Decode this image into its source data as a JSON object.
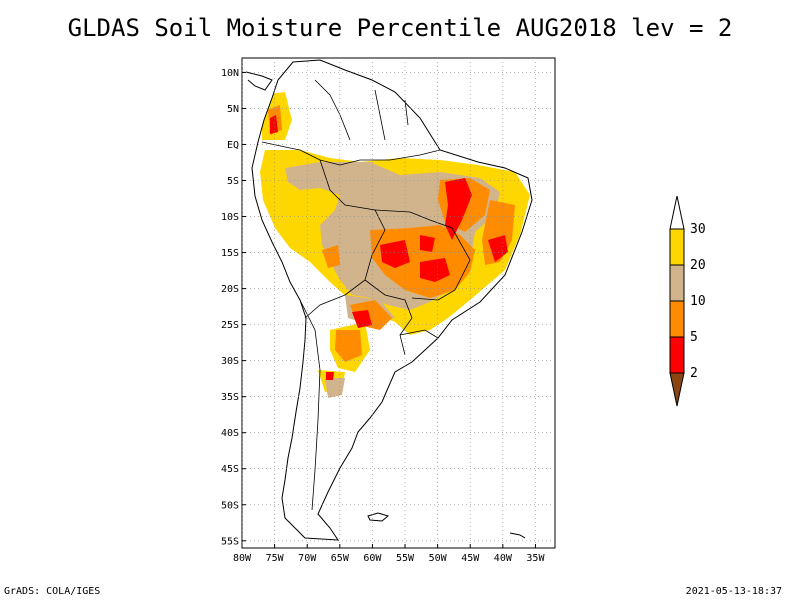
{
  "title": "GLDAS Soil Moisture Percentile AUG2018 lev = 2",
  "footer": {
    "left": "GrADS: COLA/IGES",
    "right": "2021-05-13-18:37"
  },
  "map": {
    "lon_range": [
      -80,
      -32
    ],
    "lat_range": [
      -56,
      12
    ],
    "lat_ticks": [
      "10N",
      "5N",
      "EQ",
      "5S",
      "10S",
      "15S",
      "20S",
      "25S",
      "30S",
      "35S",
      "40S",
      "45S",
      "50S",
      "55S"
    ],
    "lon_ticks": [
      "80W",
      "75W",
      "70W",
      "65W",
      "60W",
      "55W",
      "50W",
      "45W",
      "40W",
      "35W"
    ],
    "grid": true
  },
  "colorbar": {
    "levels": [
      "2",
      "5",
      "10",
      "20",
      "30"
    ],
    "colors": {
      "below_2": "#8b4513",
      "2_5": "#ff0000",
      "5_10": "#ff8c00",
      "10_20": "#d2b48c",
      "20_30": "#ffd700",
      "above_30": "#ffffff"
    }
  },
  "colors": {
    "yellow": "#ffd700",
    "tan": "#d2b48c",
    "orange": "#ff8c00",
    "red": "#ff0000",
    "brown": "#8b4513"
  }
}
